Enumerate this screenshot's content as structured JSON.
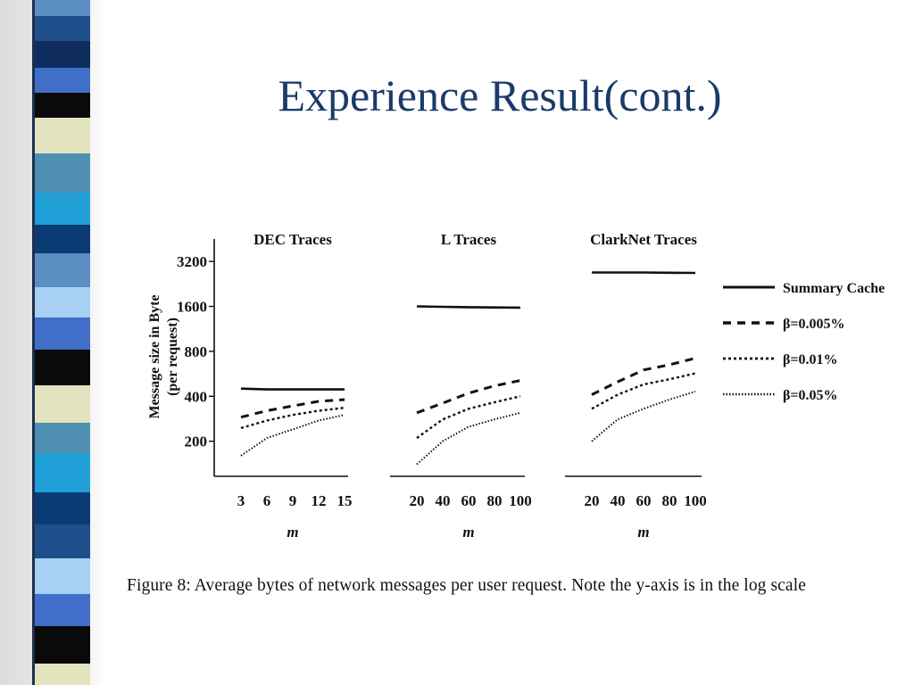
{
  "slide": {
    "title": "Experience Result(cont.)",
    "caption": "Figure 8:  Average bytes of network messages per user request.  Note the y-axis is in the log scale"
  },
  "theme": {
    "title_color": "#1b3a6b",
    "stripe_colors": [
      "#1e4e8c",
      "#5a8fc4",
      "#0e2d5e",
      "#3f6fc9",
      "#0a0a0a",
      "#e3e3c0",
      "#4f8fb2",
      "#1f9fd6",
      "#0b3b73",
      "#a7d0f2"
    ]
  },
  "chart_data": {
    "type": "line",
    "ylabel_lines": [
      "Message size in Byte",
      "(per request)"
    ],
    "y_scale": "log",
    "yticks": [
      200,
      400,
      800,
      1600,
      3200
    ],
    "ylim": [
      130,
      4400
    ],
    "legend": {
      "placement": "right",
      "entries": [
        {
          "label": "Summary Cache",
          "style": "solid"
        },
        {
          "label": "β=0.005%",
          "style": "dashed"
        },
        {
          "label": "β=0.01%",
          "style": "dotted"
        },
        {
          "label": "β=0.05%",
          "style": "fine-dotted"
        }
      ]
    },
    "panels": [
      {
        "title": "DEC Traces",
        "xlabel": "m",
        "x": [
          3,
          6,
          9,
          12,
          15
        ],
        "series": [
          {
            "name": "Summary Cache",
            "values": [
              450,
              445,
              445,
              445,
              445
            ]
          },
          {
            "name": "β=0.005%",
            "values": [
              290,
              320,
              345,
              370,
              380
            ]
          },
          {
            "name": "β=0.01%",
            "values": [
              245,
              275,
              300,
              320,
              335
            ]
          },
          {
            "name": "β=0.05%",
            "values": [
              160,
              210,
              240,
              275,
              300
            ]
          }
        ]
      },
      {
        "title": "L Traces",
        "xlabel": "m",
        "x": [
          20,
          40,
          60,
          80,
          100
        ],
        "series": [
          {
            "name": "Summary Cache",
            "values": [
              1600,
              1590,
              1580,
              1575,
              1570
            ]
          },
          {
            "name": "β=0.005%",
            "values": [
              310,
              360,
              420,
              470,
              510
            ]
          },
          {
            "name": "β=0.01%",
            "values": [
              210,
              280,
              330,
              365,
              400
            ]
          },
          {
            "name": "β=0.05%",
            "values": [
              140,
              200,
              250,
              280,
              310
            ]
          }
        ]
      },
      {
        "title": "ClarkNet Traces",
        "xlabel": "m",
        "x": [
          20,
          40,
          60,
          80,
          100
        ],
        "series": [
          {
            "name": "Summary Cache",
            "values": [
              2700,
              2700,
              2700,
              2690,
              2680
            ]
          },
          {
            "name": "β=0.005%",
            "values": [
              410,
              500,
              600,
              650,
              720
            ]
          },
          {
            "name": "β=0.01%",
            "values": [
              330,
              410,
              480,
              520,
              570
            ]
          },
          {
            "name": "β=0.05%",
            "values": [
              200,
              280,
              330,
              380,
              430
            ]
          }
        ]
      }
    ]
  }
}
